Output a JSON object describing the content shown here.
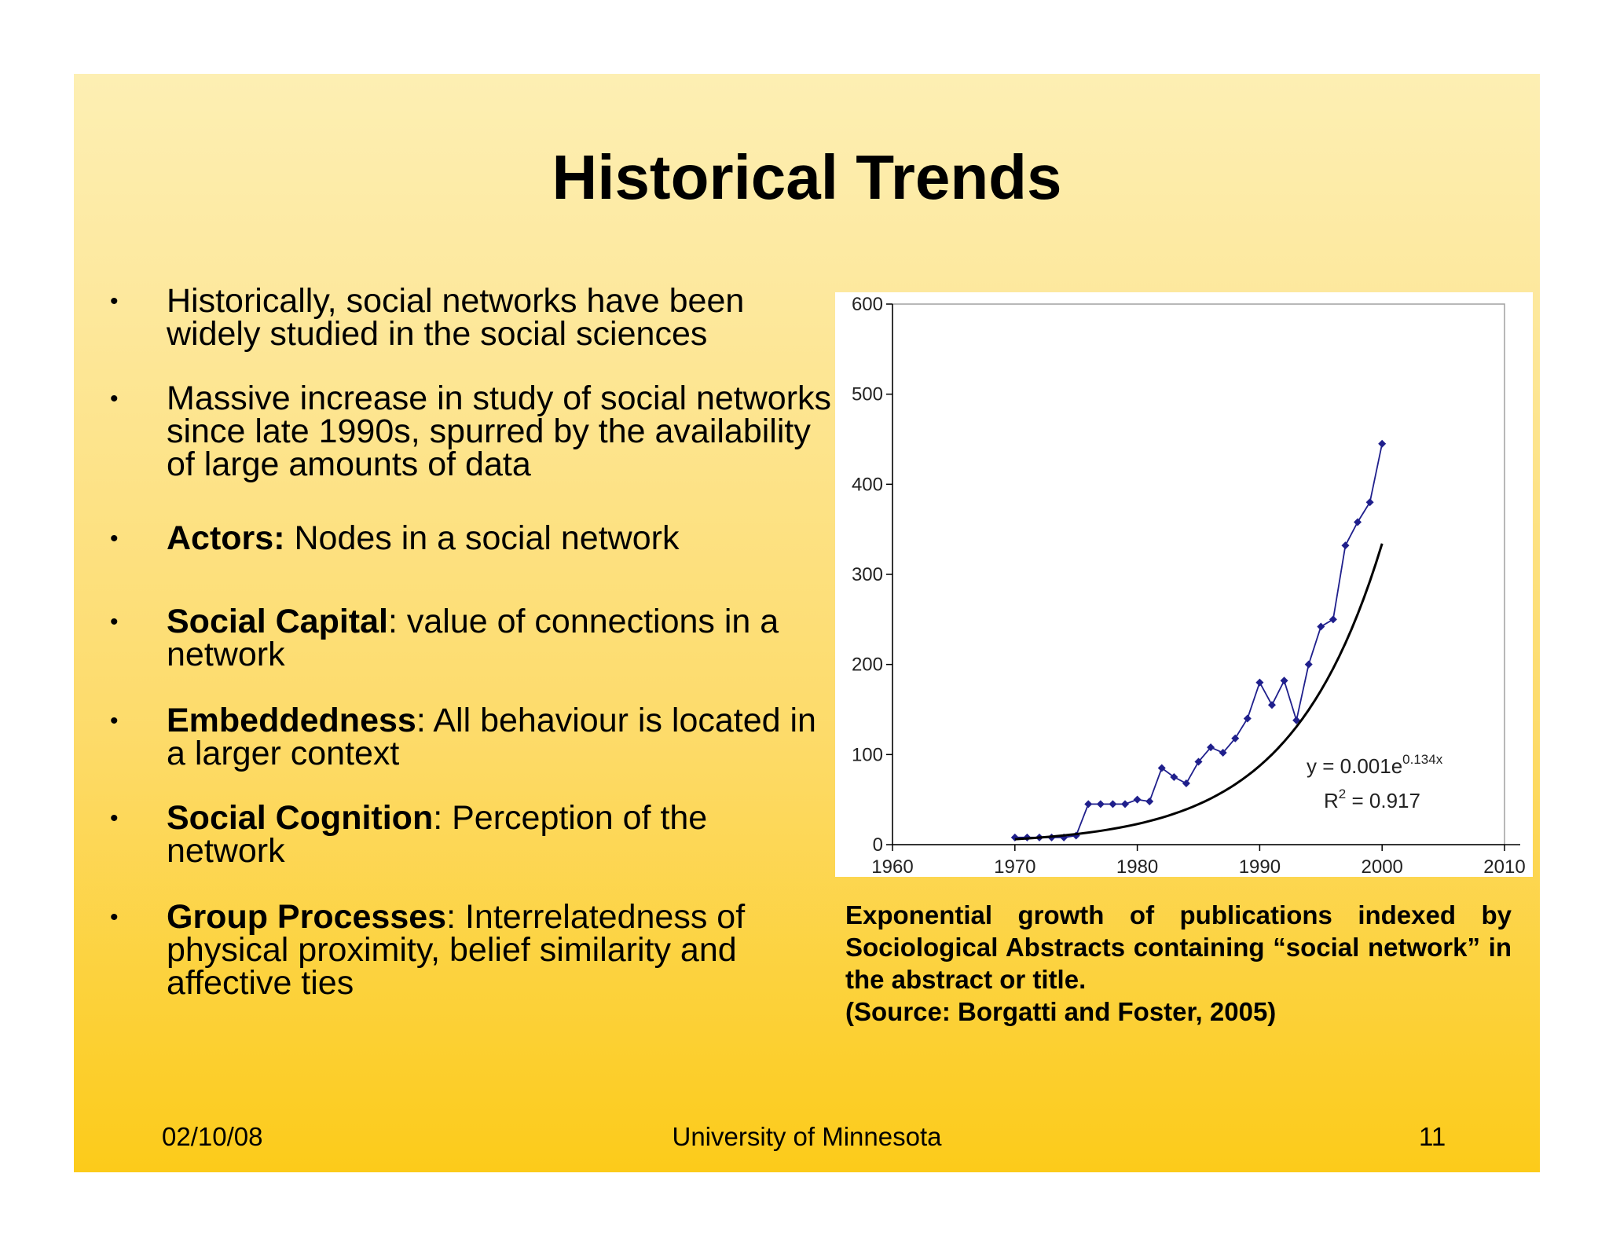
{
  "slide": {
    "title": "Historical Trends",
    "bullets": [
      {
        "dot": "•",
        "term": "",
        "text": "Historically, social networks have been widely studied in the social sciences"
      },
      {
        "dot": "•",
        "term": "",
        "text": "Massive increase in study of social networks since late 1990s, spurred by the availability of large amounts of data"
      },
      {
        "dot": "•",
        "term": "Actors:",
        "text": " Nodes in a social network"
      },
      {
        "dot": "•",
        "term": "Social Capital",
        "text": ": value of connections in a network"
      },
      {
        "dot": "•",
        "term": "Embeddedness",
        "text": ": All behaviour is located in a larger context"
      },
      {
        "dot": "•",
        "term": "Social Cognition",
        "text": ": Perception of the network"
      },
      {
        "dot": "•",
        "term": "Group Processes",
        "text": ": Interrelatedness of physical proximity, belief similarity and affective ties"
      }
    ],
    "caption_lines": [
      "Exponential growth of publications indexed by Sociological Abstracts containing “social network” in the abstract or title.",
      "(Source: Borgatti and Foster, 2005)"
    ],
    "footer": {
      "date": "02/10/08",
      "center": "University of Minnesota",
      "page": "11"
    }
  },
  "chart_data": {
    "type": "line",
    "title": "",
    "xlabel": "",
    "ylabel": "",
    "xlim": [
      1960,
      2010
    ],
    "ylim": [
      0,
      600
    ],
    "x_ticks": [
      "1960",
      "1970",
      "1980",
      "1990",
      "2000",
      "2010"
    ],
    "y_ticks": [
      "0",
      "100",
      "200",
      "300",
      "400",
      "500",
      "600"
    ],
    "grid": false,
    "series": [
      {
        "kind": "observed",
        "color": "#1f1f8c",
        "marker": "diamond",
        "x": [
          1970,
          1971,
          1972,
          1973,
          1974,
          1975,
          1976,
          1977,
          1978,
          1979,
          1980,
          1981,
          1982,
          1983,
          1984,
          1985,
          1986,
          1987,
          1988,
          1989,
          1990,
          1991,
          1992,
          1993,
          1994,
          1995,
          1996,
          1997,
          1998,
          1999,
          2000
        ],
        "y": [
          8,
          8,
          8,
          8,
          8,
          10,
          45,
          45,
          45,
          45,
          50,
          48,
          85,
          75,
          68,
          92,
          108,
          102,
          118,
          140,
          180,
          155,
          182,
          138,
          200,
          242,
          250,
          332,
          358,
          380,
          445
        ]
      },
      {
        "kind": "fit",
        "color": "#000000",
        "equation": "y = 0.001e",
        "exponent": "0.134x",
        "r2_label": "R",
        "r2_sup": "2",
        "r2_value": " = 0.917",
        "a": 6.0,
        "b": 0.134,
        "x0": 1970,
        "x_end": 2000
      }
    ]
  }
}
